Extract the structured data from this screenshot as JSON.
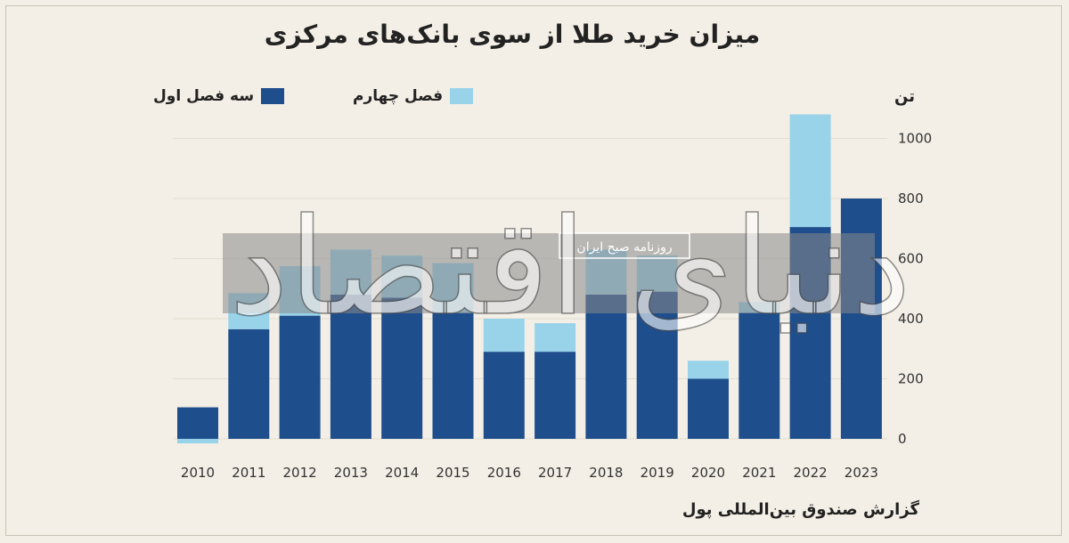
{
  "title": "میزان خرید طلا از سوی بانک‌های مرکزی",
  "source": "گزارش صندوق بین‌المللی پول",
  "watermark": {
    "main": "دنیای اقتصاد",
    "sub": "روزنامه صبح ایران"
  },
  "colors": {
    "series1": "#1f4e8c",
    "series2": "#99d3ea",
    "background": "#f3efe6",
    "grid": "#e2ddd2"
  },
  "chart_data": {
    "type": "bar",
    "stacked": true,
    "categories": [
      "2010",
      "2011",
      "2012",
      "2013",
      "2014",
      "2015",
      "2016",
      "2017",
      "2018",
      "2019",
      "2020",
      "2021",
      "2022",
      "2023"
    ],
    "series": [
      {
        "name": "سه فصل اول",
        "values": [
          105,
          365,
          410,
          480,
          470,
          420,
          290,
          290,
          480,
          490,
          200,
          420,
          705,
          800
        ]
      },
      {
        "name": "فصل چهارم",
        "values": [
          -15,
          120,
          165,
          150,
          140,
          165,
          110,
          95,
          150,
          120,
          60,
          35,
          375,
          0
        ]
      }
    ],
    "ylabel": "تن",
    "yticks": [
      0,
      200,
      400,
      600,
      800,
      1000
    ],
    "ylim": [
      -20,
      1100
    ],
    "grid": true,
    "legend": "top"
  }
}
